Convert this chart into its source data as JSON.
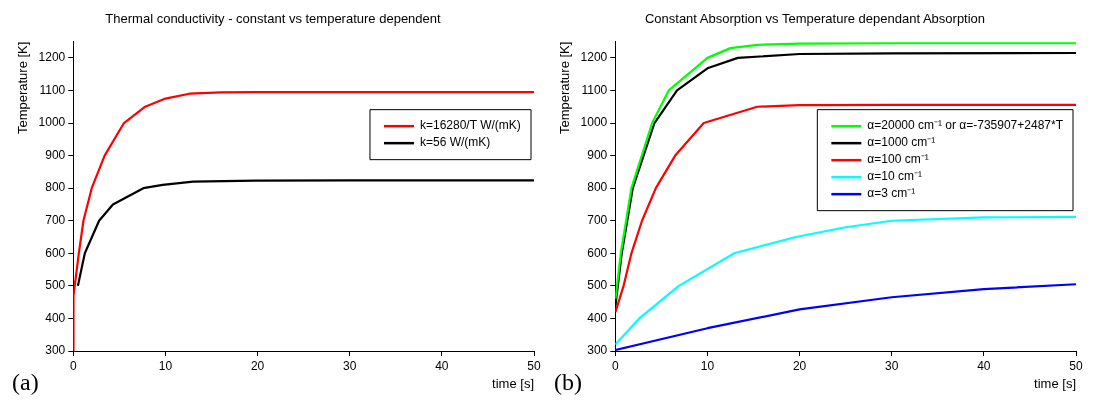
{
  "chart_data": [
    {
      "type": "line",
      "title": "Thermal conductivity - constant vs temperature dependent",
      "xlabel": "time [s]",
      "ylabel": "Temperature [K]",
      "annotations": [
        "(a)"
      ],
      "xlim": [
        0,
        50
      ],
      "xticks": [
        0,
        10,
        20,
        30,
        40,
        50
      ],
      "ylim": [
        300,
        1250
      ],
      "yticks": [
        300,
        400,
        500,
        600,
        700,
        800,
        900,
        1000,
        1100,
        1200
      ],
      "grid": false,
      "legend": "right",
      "marker": "none",
      "line_style": "solid",
      "series": [
        {
          "name": "k=16280/T W/(mK)",
          "color": "#ff0000",
          "x": [
            0,
            0.02,
            0.6,
            1.1,
            2,
            3.4,
            5.5,
            7.8,
            10,
            12.6,
            16,
            20,
            30,
            50
          ],
          "values": [
            300,
            470,
            600,
            700,
            800,
            900,
            1000,
            1050,
            1075,
            1090,
            1094,
            1095,
            1095,
            1095
          ]
        },
        {
          "name": "k=56 W/(mK)",
          "color": "#000000",
          "x": [
            0.5,
            1.25,
            2.8,
            4.3,
            7.6,
            9.7,
            13,
            20,
            30,
            50
          ],
          "values": [
            500,
            600,
            700,
            750,
            800,
            810,
            820,
            823,
            824,
            824
          ]
        }
      ]
    },
    {
      "type": "line",
      "title": "Constant Absorption vs Temperature dependant Absorption",
      "xlabel": "time [s]",
      "ylabel": "Temperature [K]",
      "annotations": [
        "(b)"
      ],
      "xlim": [
        0,
        50
      ],
      "xticks": [
        0,
        10,
        20,
        30,
        40,
        50
      ],
      "ylim": [
        300,
        1250
      ],
      "yticks": [
        300,
        400,
        500,
        600,
        700,
        800,
        900,
        1000,
        1100,
        1200
      ],
      "grid": false,
      "legend": "right",
      "marker": "none",
      "line_style": "solid",
      "series": [
        {
          "name": "α=20000 cm⁻¹ or α=-735907+2487*T",
          "color": "#00ff00",
          "x": [
            0.02,
            0.6,
            1.75,
            4,
            5.8,
            10,
            12.5,
            15.4,
            20,
            30,
            50
          ],
          "values": [
            460,
            600,
            800,
            1000,
            1100,
            1200,
            1230,
            1240,
            1244,
            1245,
            1245
          ]
        },
        {
          "name": "α=1000 cm⁻¹",
          "color": "#000000",
          "x": [
            0.02,
            0.7,
            1.9,
            4.25,
            6.7,
            10,
            13.3,
            20,
            30,
            50
          ],
          "values": [
            440,
            600,
            800,
            1000,
            1100,
            1168,
            1200,
            1212,
            1214,
            1215
          ]
        },
        {
          "name": "α=100 cm⁻¹",
          "color": "#ff0000",
          "x": [
            0.02,
            0.9,
            1.75,
            2.9,
            4.4,
            6.5,
            9.6,
            15.4,
            20,
            30,
            50
          ],
          "values": [
            420,
            500,
            600,
            700,
            800,
            900,
            1000,
            1050,
            1055,
            1056,
            1056
          ]
        },
        {
          "name": "α=10 cm⁻¹",
          "color": "#00ffff",
          "x": [
            0,
            2.6,
            6.9,
            12.9,
            19.6,
            25,
            30,
            40,
            50
          ],
          "values": [
            320,
            400,
            500,
            600,
            650,
            680,
            700,
            710,
            712
          ]
        },
        {
          "name": "α=3 cm⁻¹",
          "color": "#0000ff",
          "x": [
            0,
            10,
            20,
            30,
            40,
            50
          ],
          "values": [
            303,
            370,
            428,
            465,
            490,
            505
          ]
        }
      ]
    }
  ]
}
